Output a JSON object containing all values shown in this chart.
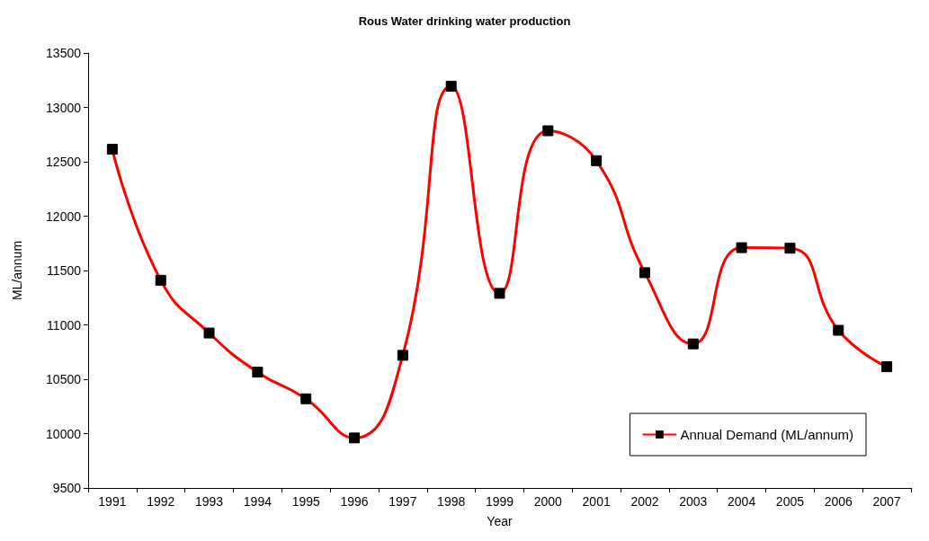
{
  "chart_data": {
    "type": "line",
    "title": "Rous Water drinking water production",
    "xlabel": "Year",
    "ylabel": "ML/annum",
    "categories": [
      "1991",
      "1992",
      "1993",
      "1994",
      "1995",
      "1996",
      "1997",
      "1998",
      "1999",
      "2000",
      "2001",
      "2002",
      "2003",
      "2004",
      "2005",
      "2006",
      "2007"
    ],
    "series": [
      {
        "name": "Annual Demand (ML/annum)",
        "color": "#ff0000",
        "values": [
          12615,
          11410,
          10925,
          10565,
          10320,
          9960,
          10720,
          13195,
          11290,
          12785,
          12510,
          11480,
          10825,
          11710,
          11705,
          10950,
          10615
        ]
      }
    ],
    "ylim": [
      9500,
      13500
    ],
    "yticks": [
      9500,
      10000,
      10500,
      11000,
      11500,
      12000,
      12500,
      13000,
      13500
    ],
    "grid": false,
    "legend": "bottom right",
    "marker": "square",
    "line_style": "solid"
  }
}
